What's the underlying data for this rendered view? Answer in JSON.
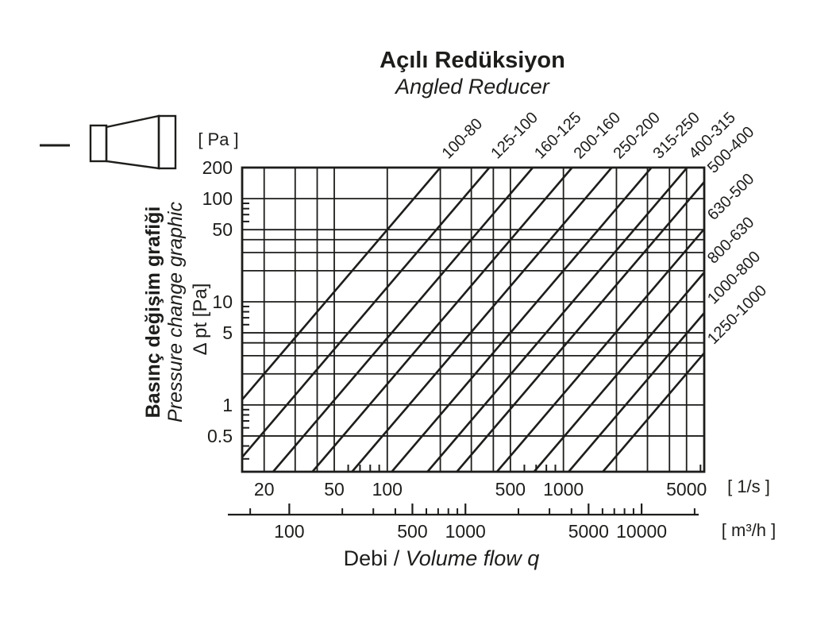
{
  "title": "Açılı Redüksiyon",
  "subtitle": "Angled Reducer",
  "y_axis": {
    "unit_label": "[ Pa ]",
    "axis_title_tr": "Basınç değişim grafiği",
    "axis_title_en": "Pressure change graphic",
    "axis_symbol": "Δ pt [Pa]"
  },
  "x_axis": {
    "unit_label_primary": "[ 1/s ]",
    "unit_label_secondary": "[ m³/h ]",
    "title_tr": "Debi /",
    "title_en": "Volume flow q"
  },
  "chart_data": {
    "type": "line",
    "scale": "log-log",
    "title": "Açılı Redüksiyon / Angled Reducer pressure change graphic",
    "x_unit": "l/s",
    "y_unit": "Pa",
    "x_range": [
      15,
      6300
    ],
    "y_range": [
      0.225,
      200
    ],
    "x_gridlines": [
      20,
      30,
      40,
      50,
      100,
      200,
      300,
      400,
      500,
      1000,
      2000,
      3000,
      4000,
      5000
    ],
    "y_gridlines": [
      0.5,
      1,
      2,
      3,
      4,
      5,
      10,
      20,
      30,
      40,
      50,
      100,
      200
    ],
    "x_minor_ticks": [
      60,
      70,
      80,
      90,
      600,
      700,
      800,
      900,
      6000
    ],
    "y_minor_ticks": [
      0.3,
      0.4,
      0.6,
      0.7,
      0.8,
      0.9,
      6,
      7,
      8,
      9,
      60,
      70,
      80,
      90
    ],
    "x_tick_values": [
      20,
      50,
      100,
      500,
      1000,
      5000
    ],
    "y_tick_values": [
      200,
      100,
      50,
      10,
      5,
      1,
      0.5
    ],
    "secondary_x_unit": "m³/h",
    "conversion_factor_ls_to_m3h": 3.6,
    "secondary_major_ticks": [
      100,
      500,
      1000,
      5000,
      10000
    ],
    "secondary_minor_ticks": [
      60,
      200,
      300,
      400,
      600,
      700,
      800,
      900,
      2000,
      3000,
      4000,
      6000,
      7000,
      8000,
      9000,
      20000
    ],
    "series_model": "dp_Pa = 200 * (q / q_at_200Pa)^2  (straight lines of slope 2 in log-log space)",
    "series": [
      {
        "label": "100-80",
        "q_at_200Pa": 200
      },
      {
        "label": "125-100",
        "q_at_200Pa": 380
      },
      {
        "label": "160-125",
        "q_at_200Pa": 670
      },
      {
        "label": "200-160",
        "q_at_200Pa": 1120
      },
      {
        "label": "250-200",
        "q_at_200Pa": 1880
      },
      {
        "label": "315-250",
        "q_at_200Pa": 3160
      },
      {
        "label": "400-315",
        "q_at_200Pa": 5040
      },
      {
        "label": "500-400",
        "q_at_200Pa": 7400
      },
      {
        "label": "630-500",
        "q_at_200Pa": 12500
      },
      {
        "label": "800-630",
        "q_at_200Pa": 20300
      },
      {
        "label": "1000-800",
        "q_at_200Pa": 31900
      },
      {
        "label": "1250-1000",
        "q_at_200Pa": 49900
      }
    ],
    "legend_position": "labels along line ends (top and right of plot)",
    "grid": true
  },
  "colors": {
    "ink": "#1d1d1b",
    "background": "#ffffff"
  }
}
